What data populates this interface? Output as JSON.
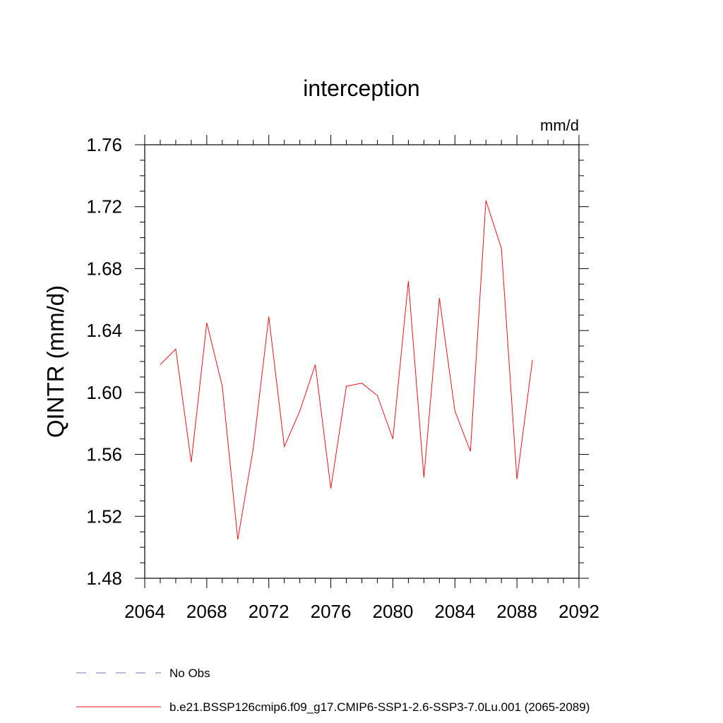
{
  "chart_data": {
    "type": "line",
    "title": "interception",
    "units": "mm/d",
    "xlabel": "",
    "ylabel": "QINTR  (mm/d)",
    "xlim": [
      2064,
      2092
    ],
    "ylim": [
      1.48,
      1.76
    ],
    "x_ticks": [
      "2064",
      "2068",
      "2072",
      "2076",
      "2080",
      "2084",
      "2088",
      "2092"
    ],
    "y_ticks": [
      "1.48",
      "1.52",
      "1.56",
      "1.60",
      "1.64",
      "1.68",
      "1.72",
      "1.76"
    ],
    "grid": false,
    "legend_position": "bottom-left",
    "series": [
      {
        "name": "No Obs",
        "color": "#7b6fb0",
        "dash": true,
        "x": [],
        "values": []
      },
      {
        "name": "b.e21.BSSP126cmip6.f09_g17.CMIP6-SSP1-2.6-SSP3-7.0Lu.001 (2065-2089)",
        "color": "#e8141c",
        "dash": false,
        "x": [
          2065,
          2066,
          2067,
          2068,
          2069,
          2070,
          2071,
          2072,
          2073,
          2074,
          2075,
          2076,
          2077,
          2078,
          2079,
          2080,
          2081,
          2082,
          2083,
          2084,
          2085,
          2086,
          2087,
          2088,
          2089
        ],
        "values": [
          1.618,
          1.628,
          1.555,
          1.645,
          1.604,
          1.505,
          1.564,
          1.649,
          1.565,
          1.588,
          1.618,
          1.538,
          1.604,
          1.606,
          1.598,
          1.57,
          1.672,
          1.545,
          1.661,
          1.588,
          1.562,
          1.724,
          1.693,
          1.544,
          1.621
        ]
      }
    ]
  }
}
